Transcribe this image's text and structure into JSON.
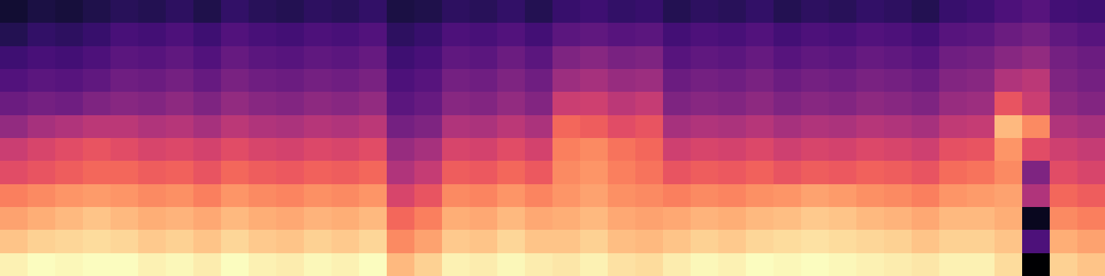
{
  "chart_data": {
    "type": "heatmap",
    "color": "magma",
    "tick_labels": false,
    "cells": [
      [
        0.18,
        0.2,
        0.19,
        0.21,
        0.23,
        0.22,
        0.24,
        0.21,
        0.25,
        0.23,
        0.22,
        0.24,
        0.23,
        0.25,
        0.2,
        0.21,
        0.24,
        0.23,
        0.25,
        0.22,
        0.26,
        0.27,
        0.25,
        0.26,
        0.22,
        0.24,
        0.23,
        0.25,
        0.22,
        0.24,
        0.23,
        0.25,
        0.24,
        0.22,
        0.26,
        0.27,
        0.3,
        0.32,
        0.28,
        0.27
      ],
      [
        0.22,
        0.25,
        0.24,
        0.26,
        0.29,
        0.28,
        0.3,
        0.27,
        0.31,
        0.29,
        0.28,
        0.3,
        0.29,
        0.31,
        0.24,
        0.26,
        0.3,
        0.29,
        0.31,
        0.28,
        0.33,
        0.34,
        0.32,
        0.33,
        0.28,
        0.3,
        0.29,
        0.31,
        0.28,
        0.3,
        0.29,
        0.31,
        0.3,
        0.28,
        0.32,
        0.33,
        0.36,
        0.38,
        0.34,
        0.32
      ],
      [
        0.27,
        0.29,
        0.28,
        0.3,
        0.33,
        0.32,
        0.34,
        0.31,
        0.35,
        0.33,
        0.32,
        0.34,
        0.33,
        0.35,
        0.27,
        0.29,
        0.34,
        0.33,
        0.36,
        0.33,
        0.4,
        0.42,
        0.39,
        0.4,
        0.32,
        0.34,
        0.33,
        0.35,
        0.32,
        0.34,
        0.33,
        0.35,
        0.34,
        0.32,
        0.37,
        0.38,
        0.42,
        0.44,
        0.38,
        0.36
      ],
      [
        0.31,
        0.33,
        0.32,
        0.34,
        0.37,
        0.36,
        0.38,
        0.35,
        0.39,
        0.37,
        0.36,
        0.38,
        0.37,
        0.39,
        0.3,
        0.32,
        0.38,
        0.37,
        0.4,
        0.37,
        0.46,
        0.48,
        0.45,
        0.46,
        0.36,
        0.38,
        0.37,
        0.39,
        0.36,
        0.38,
        0.37,
        0.39,
        0.38,
        0.36,
        0.41,
        0.42,
        0.5,
        0.52,
        0.4,
        0.38
      ],
      [
        0.36,
        0.38,
        0.37,
        0.4,
        0.42,
        0.41,
        0.43,
        0.4,
        0.44,
        0.42,
        0.41,
        0.43,
        0.42,
        0.44,
        0.33,
        0.35,
        0.42,
        0.41,
        0.44,
        0.41,
        0.55,
        0.56,
        0.52,
        0.54,
        0.4,
        0.42,
        0.41,
        0.43,
        0.4,
        0.42,
        0.41,
        0.43,
        0.42,
        0.4,
        0.45,
        0.46,
        0.62,
        0.55,
        0.43,
        0.41
      ],
      [
        0.44,
        0.48,
        0.5,
        0.52,
        0.52,
        0.5,
        0.51,
        0.48,
        0.52,
        0.5,
        0.49,
        0.51,
        0.5,
        0.52,
        0.38,
        0.4,
        0.5,
        0.49,
        0.52,
        0.49,
        0.66,
        0.64,
        0.6,
        0.62,
        0.48,
        0.5,
        0.49,
        0.51,
        0.48,
        0.5,
        0.49,
        0.51,
        0.5,
        0.48,
        0.53,
        0.54,
        0.8,
        0.72,
        0.5,
        0.48
      ],
      [
        0.55,
        0.58,
        0.6,
        0.62,
        0.6,
        0.58,
        0.59,
        0.57,
        0.6,
        0.58,
        0.57,
        0.59,
        0.58,
        0.6,
        0.45,
        0.48,
        0.58,
        0.57,
        0.6,
        0.57,
        0.7,
        0.72,
        0.68,
        0.66,
        0.56,
        0.58,
        0.57,
        0.59,
        0.56,
        0.58,
        0.57,
        0.59,
        0.58,
        0.56,
        0.61,
        0.62,
        0.74,
        0.6,
        0.56,
        0.54
      ],
      [
        0.6,
        0.62,
        0.64,
        0.66,
        0.66,
        0.64,
        0.65,
        0.62,
        0.66,
        0.64,
        0.63,
        0.65,
        0.64,
        0.66,
        0.5,
        0.54,
        0.64,
        0.63,
        0.66,
        0.63,
        0.72,
        0.74,
        0.7,
        0.68,
        0.62,
        0.64,
        0.63,
        0.65,
        0.62,
        0.64,
        0.63,
        0.65,
        0.64,
        0.62,
        0.67,
        0.68,
        0.72,
        0.4,
        0.6,
        0.58
      ],
      [
        0.7,
        0.72,
        0.74,
        0.75,
        0.74,
        0.72,
        0.73,
        0.7,
        0.74,
        0.72,
        0.71,
        0.73,
        0.72,
        0.74,
        0.58,
        0.62,
        0.72,
        0.71,
        0.74,
        0.71,
        0.74,
        0.76,
        0.73,
        0.72,
        0.7,
        0.72,
        0.71,
        0.73,
        0.74,
        0.76,
        0.75,
        0.73,
        0.72,
        0.7,
        0.74,
        0.75,
        0.76,
        0.5,
        0.66,
        0.64
      ],
      [
        0.76,
        0.78,
        0.8,
        0.82,
        0.8,
        0.78,
        0.79,
        0.77,
        0.8,
        0.78,
        0.77,
        0.79,
        0.78,
        0.8,
        0.66,
        0.7,
        0.78,
        0.77,
        0.8,
        0.77,
        0.78,
        0.8,
        0.77,
        0.76,
        0.77,
        0.79,
        0.78,
        0.8,
        0.81,
        0.83,
        0.82,
        0.8,
        0.79,
        0.77,
        0.8,
        0.8,
        0.78,
        0.15,
        0.72,
        0.7
      ],
      [
        0.82,
        0.84,
        0.85,
        0.86,
        0.85,
        0.83,
        0.84,
        0.82,
        0.85,
        0.83,
        0.82,
        0.84,
        0.83,
        0.85,
        0.72,
        0.76,
        0.83,
        0.82,
        0.85,
        0.82,
        0.82,
        0.84,
        0.81,
        0.8,
        0.82,
        0.84,
        0.83,
        0.85,
        0.86,
        0.87,
        0.86,
        0.85,
        0.84,
        0.82,
        0.84,
        0.84,
        0.82,
        0.3,
        0.78,
        0.76
      ],
      [
        0.9,
        0.92,
        0.91,
        0.92,
        0.92,
        0.9,
        0.91,
        0.89,
        0.92,
        0.9,
        0.89,
        0.91,
        0.9,
        0.92,
        0.8,
        0.84,
        0.9,
        0.89,
        0.91,
        0.89,
        0.88,
        0.9,
        0.87,
        0.86,
        0.89,
        0.91,
        0.9,
        0.92,
        0.91,
        0.92,
        0.91,
        0.9,
        0.89,
        0.88,
        0.9,
        0.9,
        0.86,
        0.1,
        0.84,
        0.82
      ]
    ]
  }
}
